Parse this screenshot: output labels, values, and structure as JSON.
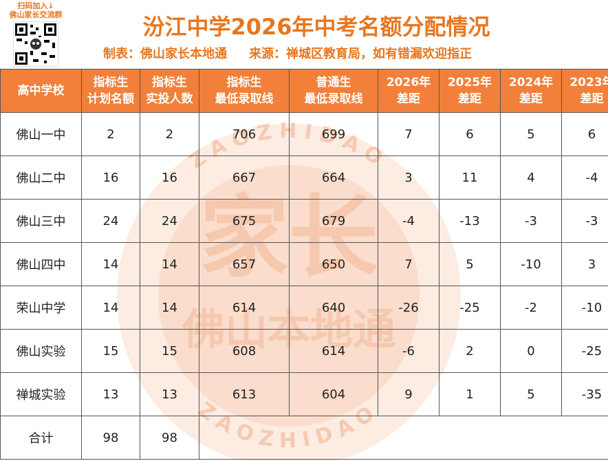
{
  "header": {
    "qr_caption_line1": "扫码加入↓",
    "qr_caption_line2": "佛山家长交流群",
    "title": "汾江中学2026年中考名额分配情况",
    "maker": "制表：佛山家长本地通",
    "source": "来源：禅城区教育局，如有错漏欢迎指正"
  },
  "watermark": {
    "ring_text_top": "ZAOZHIDAO",
    "ring_text_bottom": "ZAOZHIDAO",
    "big_text": "家长",
    "sub_text": "佛山本地通",
    "color": "#f2b08a"
  },
  "table": {
    "columns": [
      {
        "line1": "高中学校",
        "line2": ""
      },
      {
        "line1": "指标生",
        "line2": "计划名额"
      },
      {
        "line1": "指标生",
        "line2": "实投人数"
      },
      {
        "line1": "指标生",
        "line2": "最低录取线"
      },
      {
        "line1": "普通生",
        "line2": "最低录取线"
      },
      {
        "line1": "2026年",
        "line2": "差距"
      },
      {
        "line1": "2025年",
        "line2": "差距"
      },
      {
        "line1": "2024年",
        "line2": "差距"
      },
      {
        "line1": "2023年",
        "line2": "差距"
      }
    ],
    "rows": [
      [
        "佛山一中",
        "2",
        "2",
        "706",
        "699",
        "7",
        "6",
        "5",
        "6"
      ],
      [
        "佛山二中",
        "16",
        "16",
        "667",
        "664",
        "3",
        "11",
        "4",
        "-4"
      ],
      [
        "佛山三中",
        "24",
        "24",
        "675",
        "679",
        "-4",
        "-13",
        "-3",
        "-3"
      ],
      [
        "佛山四中",
        "14",
        "14",
        "657",
        "650",
        "7",
        "5",
        "-10",
        "3"
      ],
      [
        "荣山中学",
        "14",
        "14",
        "614",
        "640",
        "-26",
        "-25",
        "-2",
        "-10"
      ],
      [
        "佛山实验",
        "15",
        "15",
        "608",
        "614",
        "-6",
        "2",
        "0",
        "-25"
      ],
      [
        "禅城实验",
        "13",
        "13",
        "613",
        "604",
        "9",
        "1",
        "5",
        "-35"
      ]
    ],
    "total": {
      "label": "合计",
      "plan": "98",
      "actual": "98"
    }
  },
  "colors": {
    "accent": "#e8761f",
    "header_bg": "#f2803a",
    "header_text": "#ffffff"
  }
}
